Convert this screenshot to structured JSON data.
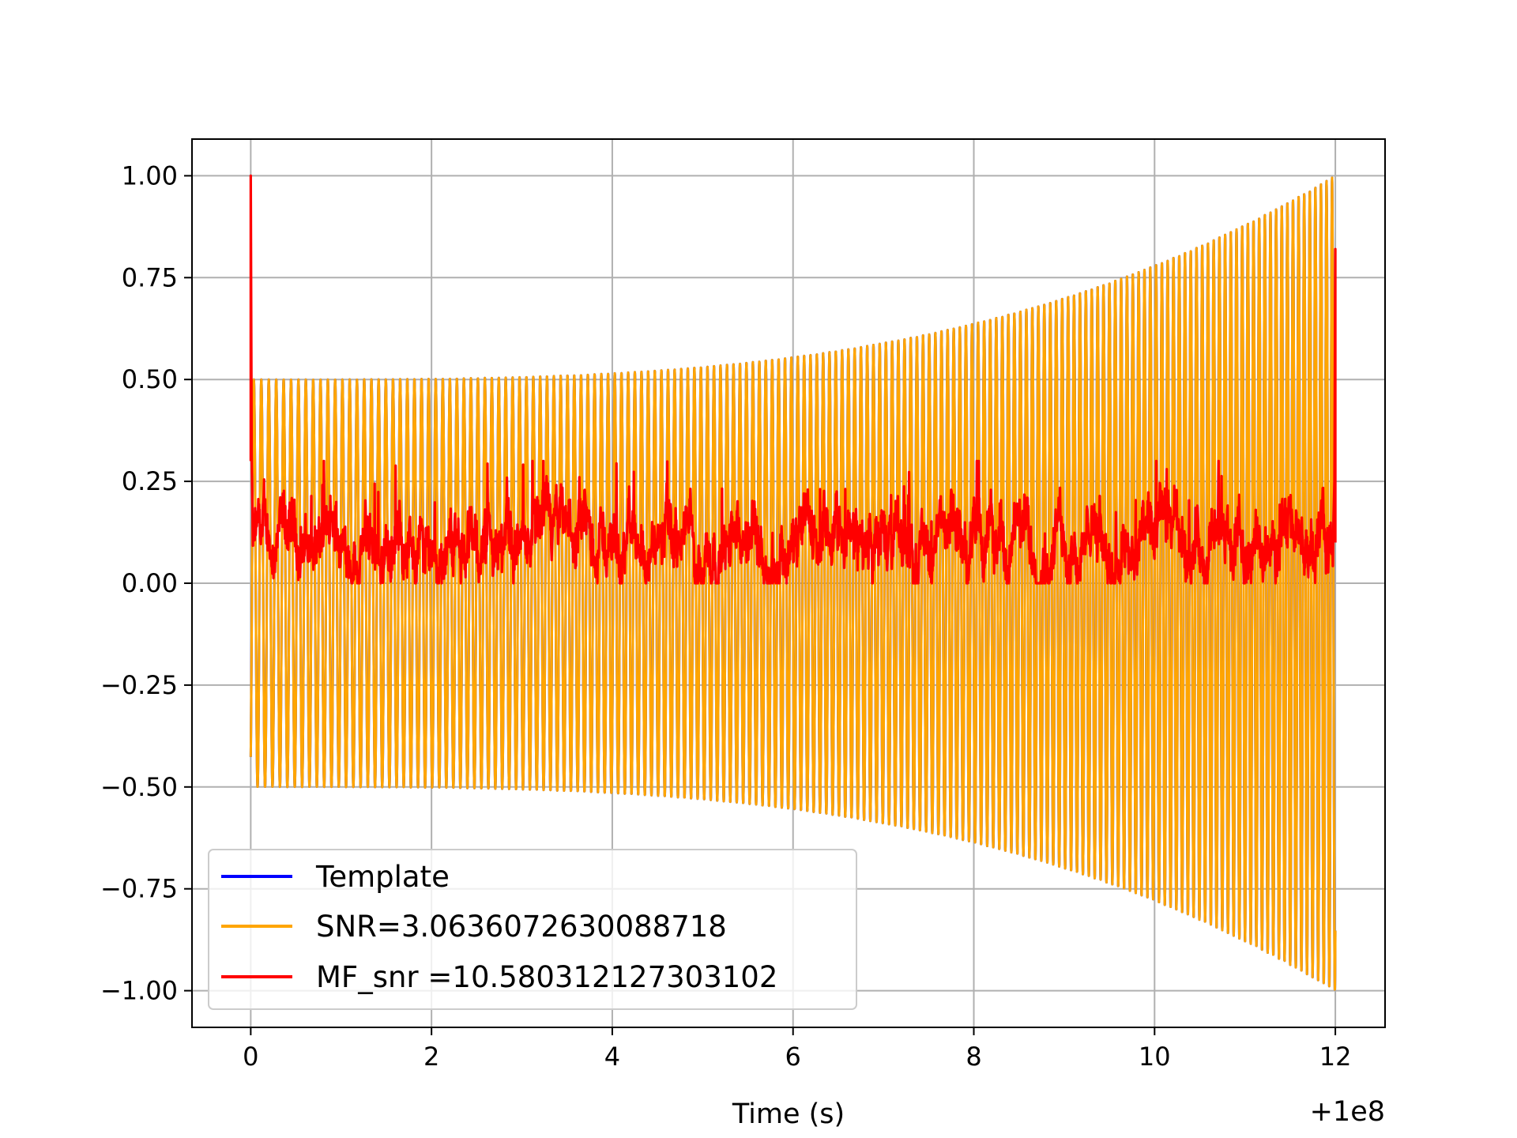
{
  "chart_data": {
    "type": "line",
    "title": "",
    "xlabel": "Time (s)",
    "ylabel": "",
    "x_offset_label": "+1e8",
    "xlim": [
      -0.65,
      12.55
    ],
    "ylim": [
      -1.09,
      1.09
    ],
    "xticks": [
      0,
      2,
      4,
      6,
      8,
      10,
      12
    ],
    "xtick_labels": [
      "0",
      "2",
      "4",
      "6",
      "8",
      "10",
      "12"
    ],
    "yticks": [
      1.0,
      0.75,
      0.5,
      0.25,
      0.0,
      -0.25,
      -0.5,
      -0.75,
      -1.0
    ],
    "ytick_labels": [
      "1.00",
      "0.75",
      "0.50",
      "0.25",
      "0.00",
      "−0.25",
      "−0.50",
      "−0.75",
      "−1.00"
    ],
    "grid": true,
    "legend_position": "lower-left",
    "series": [
      {
        "name": "Template",
        "color": "#0000ff",
        "kind": "chirp",
        "t_start": 0.0,
        "t_end": 12.0,
        "amplitude_start": 0.5,
        "amplitude_end": 1.0,
        "cycles": 170
      },
      {
        "name": "SNR=3.0636072630088718",
        "color": "#ffa500",
        "kind": "chirp",
        "t_start": 0.0,
        "t_end": 12.0,
        "amplitude_start": 0.5,
        "amplitude_end": 1.0,
        "cycles": 170
      },
      {
        "name": "MF_snr =10.580312127303102",
        "color": "#ff0000",
        "kind": "matched_filter",
        "t_start": 0.0,
        "t_end": 12.0,
        "peak_start": 1.0,
        "peak_end": 0.82,
        "noise_mean": 0.1,
        "noise_max": 0.3
      }
    ]
  }
}
